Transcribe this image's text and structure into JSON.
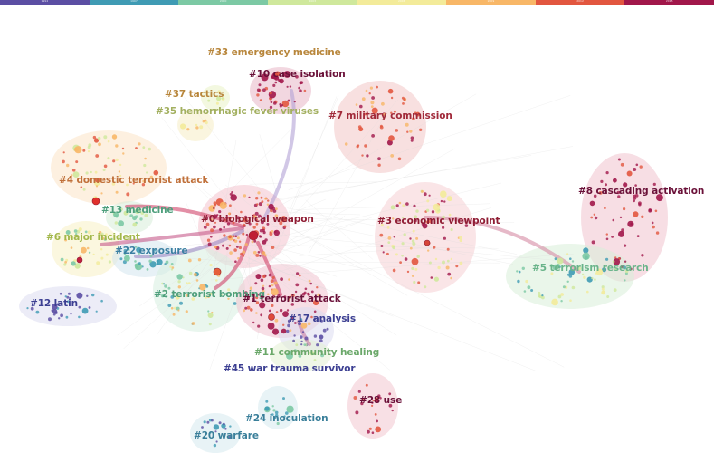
{
  "timeline": {
    "years": [
      "1994",
      "1997",
      "2000",
      "2003",
      "2006",
      "2009",
      "2012",
      "2015"
    ],
    "colors": [
      "#5b4ea3",
      "#3f9bb4",
      "#7cc9a4",
      "#cfe89c",
      "#f3eb9a",
      "#f8b767",
      "#e2563f",
      "#a1174a"
    ]
  },
  "clusters": [
    {
      "id": "c33",
      "label": "#33 emergency medicine",
      "color": "#b8863b"
    },
    {
      "id": "c10",
      "label": "#10 case isolation",
      "color": "#6a1038"
    },
    {
      "id": "c37",
      "label": "#37 tactics",
      "color": "#b8863b"
    },
    {
      "id": "c35",
      "label": "#35 hemorrhagic fever viruses",
      "color": "#a3b060"
    },
    {
      "id": "c7",
      "label": "#7 military commission",
      "color": "#a12a3a"
    },
    {
      "id": "c4",
      "label": "#4 domestic terrorist attack",
      "color": "#c0703a"
    },
    {
      "id": "c13",
      "label": "#13 medicine",
      "color": "#4e9f7c"
    },
    {
      "id": "c0",
      "label": "#0 biological weapon",
      "color": "#8f1c33"
    },
    {
      "id": "c3",
      "label": "#3 economic viewpoint",
      "color": "#8f1c33"
    },
    {
      "id": "c8",
      "label": "#8 cascading activation",
      "color": "#6a1038"
    },
    {
      "id": "c6",
      "label": "#6 major incident",
      "color": "#a3b84c"
    },
    {
      "id": "c22",
      "label": "#22 exposure",
      "color": "#3b7fa2"
    },
    {
      "id": "c5",
      "label": "#5 terrorism research",
      "color": "#6ab48a"
    },
    {
      "id": "c12",
      "label": "#12 latin",
      "color": "#3c3f92"
    },
    {
      "id": "c2",
      "label": "#2 terrorist bombing",
      "color": "#4e9f7c"
    },
    {
      "id": "c1",
      "label": "#1 terrorist attack",
      "color": "#6a1038"
    },
    {
      "id": "c17",
      "label": "#17 analysis",
      "color": "#3c3f92"
    },
    {
      "id": "c11",
      "label": "#11 community healing",
      "color": "#6ba86a"
    },
    {
      "id": "c45",
      "label": "#45 war trauma survivor",
      "color": "#3c3f92"
    },
    {
      "id": "c28",
      "label": "#28 use",
      "color": "#6a1038"
    },
    {
      "id": "c24",
      "label": "#24 inoculation",
      "color": "#3a7f9a"
    },
    {
      "id": "c20",
      "label": "#20 warfare",
      "color": "#3a7f9a"
    }
  ]
}
